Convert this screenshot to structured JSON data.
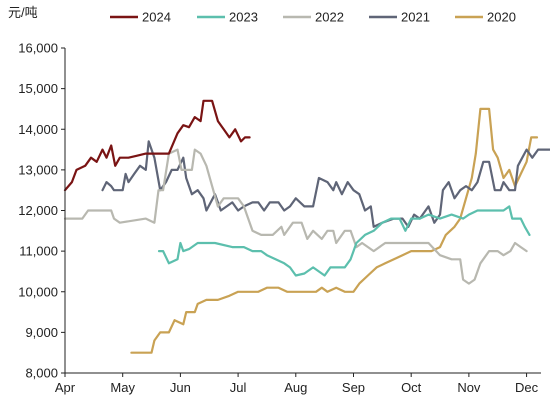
{
  "chart_data": {
    "type": "line",
    "unit_label": "元/吨",
    "ylim": [
      8000,
      16000
    ],
    "y_ticks": [
      8000,
      9000,
      10000,
      11000,
      12000,
      13000,
      14000,
      15000,
      16000
    ],
    "y_tick_labels": [
      "8,000",
      "9,000",
      "10,000",
      "11,000",
      "12,000",
      "13,000",
      "14,000",
      "15,000",
      "16,000"
    ],
    "x_axis": "month",
    "x_ticks": [
      4,
      5,
      6,
      7,
      8,
      9,
      10,
      11,
      12
    ],
    "x_tick_labels": [
      "Apr",
      "May",
      "Jun",
      "Jul",
      "Aug",
      "Sep",
      "Oct",
      "Nov",
      "Dec"
    ],
    "grid": false,
    "legend_position": "top",
    "series": [
      {
        "name": "2024",
        "color": "#7a1414",
        "points": [
          [
            4.0,
            12500
          ],
          [
            4.12,
            12700
          ],
          [
            4.2,
            13000
          ],
          [
            4.35,
            13100
          ],
          [
            4.45,
            13300
          ],
          [
            4.55,
            13200
          ],
          [
            4.65,
            13500
          ],
          [
            4.72,
            13300
          ],
          [
            4.8,
            13600
          ],
          [
            4.87,
            13100
          ],
          [
            4.95,
            13300
          ],
          [
            5.1,
            13300
          ],
          [
            5.25,
            13350
          ],
          [
            5.4,
            13400
          ],
          [
            5.6,
            13400
          ],
          [
            5.8,
            13400
          ],
          [
            5.95,
            13900
          ],
          [
            6.05,
            14100
          ],
          [
            6.15,
            14050
          ],
          [
            6.25,
            14300
          ],
          [
            6.35,
            14200
          ],
          [
            6.4,
            14700
          ],
          [
            6.55,
            14700
          ],
          [
            6.65,
            14200
          ],
          [
            6.75,
            14000
          ],
          [
            6.85,
            13800
          ],
          [
            6.95,
            14000
          ],
          [
            7.05,
            13700
          ],
          [
            7.12,
            13800
          ],
          [
            7.2,
            13800
          ]
        ]
      },
      {
        "name": "2023",
        "color": "#5cbfad",
        "points": [
          [
            5.63,
            11000
          ],
          [
            5.7,
            11000
          ],
          [
            5.8,
            10700
          ],
          [
            5.95,
            10800
          ],
          [
            6.0,
            11200
          ],
          [
            6.05,
            11000
          ],
          [
            6.15,
            11050
          ],
          [
            6.3,
            11200
          ],
          [
            6.6,
            11200
          ],
          [
            6.9,
            11100
          ],
          [
            7.1,
            11100
          ],
          [
            7.25,
            11000
          ],
          [
            7.4,
            11000
          ],
          [
            7.5,
            10900
          ],
          [
            7.65,
            10800
          ],
          [
            7.8,
            10700
          ],
          [
            7.9,
            10600
          ],
          [
            8.0,
            10400
          ],
          [
            8.15,
            10450
          ],
          [
            8.3,
            10600
          ],
          [
            8.5,
            10400
          ],
          [
            8.6,
            10600
          ],
          [
            8.85,
            10600
          ],
          [
            8.95,
            10800
          ],
          [
            9.05,
            11200
          ],
          [
            9.2,
            11400
          ],
          [
            9.35,
            11500
          ],
          [
            9.5,
            11700
          ],
          [
            9.65,
            11800
          ],
          [
            9.8,
            11800
          ],
          [
            9.9,
            11500
          ],
          [
            10.0,
            11800
          ],
          [
            10.15,
            11800
          ],
          [
            10.3,
            11900
          ],
          [
            10.5,
            11800
          ],
          [
            10.7,
            11900
          ],
          [
            10.9,
            11800
          ],
          [
            11.0,
            11900
          ],
          [
            11.15,
            12000
          ],
          [
            11.4,
            12000
          ],
          [
            11.6,
            12000
          ],
          [
            11.7,
            12100
          ],
          [
            11.75,
            11800
          ],
          [
            11.9,
            11800
          ],
          [
            11.97,
            11600
          ],
          [
            12.05,
            11400
          ]
        ]
      },
      {
        "name": "2022",
        "color": "#b8b8b0",
        "points": [
          [
            4.0,
            11800
          ],
          [
            4.3,
            11800
          ],
          [
            4.4,
            12000
          ],
          [
            4.8,
            12000
          ],
          [
            4.85,
            11800
          ],
          [
            4.95,
            11700
          ],
          [
            5.4,
            11800
          ],
          [
            5.55,
            11700
          ],
          [
            5.62,
            12500
          ],
          [
            5.7,
            12500
          ],
          [
            5.8,
            13400
          ],
          [
            5.95,
            13500
          ],
          [
            6.02,
            13000
          ],
          [
            6.2,
            13000
          ],
          [
            6.25,
            13500
          ],
          [
            6.35,
            13400
          ],
          [
            6.45,
            13100
          ],
          [
            6.55,
            12600
          ],
          [
            6.65,
            12100
          ],
          [
            6.75,
            12300
          ],
          [
            7.0,
            12300
          ],
          [
            7.1,
            12100
          ],
          [
            7.25,
            11500
          ],
          [
            7.4,
            11400
          ],
          [
            7.6,
            11400
          ],
          [
            7.75,
            11600
          ],
          [
            7.8,
            11400
          ],
          [
            7.95,
            11700
          ],
          [
            8.1,
            11700
          ],
          [
            8.2,
            11300
          ],
          [
            8.3,
            11500
          ],
          [
            8.45,
            11300
          ],
          [
            8.55,
            11500
          ],
          [
            8.65,
            11500
          ],
          [
            8.7,
            11200
          ],
          [
            8.85,
            11500
          ],
          [
            8.95,
            11500
          ],
          [
            9.05,
            11100
          ],
          [
            9.15,
            11200
          ],
          [
            9.35,
            11000
          ],
          [
            9.55,
            11200
          ],
          [
            9.75,
            11200
          ],
          [
            9.95,
            11200
          ],
          [
            10.1,
            11200
          ],
          [
            10.3,
            11200
          ],
          [
            10.5,
            10900
          ],
          [
            10.7,
            10800
          ],
          [
            10.85,
            10800
          ],
          [
            10.9,
            10300
          ],
          [
            11.0,
            10200
          ],
          [
            11.1,
            10300
          ],
          [
            11.2,
            10700
          ],
          [
            11.35,
            11000
          ],
          [
            11.5,
            11000
          ],
          [
            11.6,
            10900
          ],
          [
            11.72,
            11000
          ],
          [
            11.8,
            11200
          ],
          [
            11.9,
            11100
          ],
          [
            12.0,
            11000
          ]
        ]
      },
      {
        "name": "2021",
        "color": "#5f6577",
        "points": [
          [
            4.65,
            12500
          ],
          [
            4.72,
            12700
          ],
          [
            4.8,
            12600
          ],
          [
            4.85,
            12500
          ],
          [
            5.0,
            12500
          ],
          [
            5.05,
            12900
          ],
          [
            5.1,
            12700
          ],
          [
            5.2,
            12900
          ],
          [
            5.3,
            13100
          ],
          [
            5.4,
            13000
          ],
          [
            5.45,
            13700
          ],
          [
            5.55,
            13300
          ],
          [
            5.65,
            12500
          ],
          [
            5.75,
            12700
          ],
          [
            5.85,
            13000
          ],
          [
            5.95,
            13000
          ],
          [
            6.05,
            13300
          ],
          [
            6.1,
            12800
          ],
          [
            6.2,
            12400
          ],
          [
            6.3,
            12500
          ],
          [
            6.4,
            12300
          ],
          [
            6.45,
            12000
          ],
          [
            6.6,
            12400
          ],
          [
            6.7,
            12000
          ],
          [
            6.9,
            12200
          ],
          [
            7.0,
            12000
          ],
          [
            7.1,
            12100
          ],
          [
            7.25,
            12200
          ],
          [
            7.35,
            12200
          ],
          [
            7.45,
            12000
          ],
          [
            7.55,
            12200
          ],
          [
            7.7,
            12200
          ],
          [
            7.8,
            12000
          ],
          [
            7.9,
            12100
          ],
          [
            8.0,
            12300
          ],
          [
            8.15,
            12100
          ],
          [
            8.3,
            12100
          ],
          [
            8.4,
            12800
          ],
          [
            8.55,
            12700
          ],
          [
            8.65,
            12500
          ],
          [
            8.7,
            12700
          ],
          [
            8.8,
            12400
          ],
          [
            8.9,
            12700
          ],
          [
            9.0,
            12500
          ],
          [
            9.1,
            12400
          ],
          [
            9.2,
            12000
          ],
          [
            9.3,
            12100
          ],
          [
            9.35,
            11600
          ],
          [
            9.5,
            11700
          ],
          [
            9.7,
            11800
          ],
          [
            9.85,
            11800
          ],
          [
            9.95,
            11600
          ],
          [
            10.05,
            11900
          ],
          [
            10.15,
            11800
          ],
          [
            10.3,
            12100
          ],
          [
            10.4,
            11700
          ],
          [
            10.5,
            11900
          ],
          [
            10.55,
            12500
          ],
          [
            10.65,
            12700
          ],
          [
            10.75,
            12300
          ],
          [
            10.85,
            12500
          ],
          [
            10.95,
            12600
          ],
          [
            11.05,
            12500
          ],
          [
            11.15,
            12700
          ],
          [
            11.25,
            13200
          ],
          [
            11.35,
            13200
          ],
          [
            11.45,
            12500
          ],
          [
            11.55,
            12500
          ],
          [
            11.6,
            12700
          ],
          [
            11.7,
            12500
          ],
          [
            11.8,
            12500
          ],
          [
            11.85,
            13100
          ],
          [
            12.0,
            13500
          ],
          [
            12.1,
            13300
          ],
          [
            12.2,
            13500
          ],
          [
            12.5,
            13500
          ]
        ]
      },
      {
        "name": "2020",
        "color": "#c9a254",
        "points": [
          [
            5.15,
            8500
          ],
          [
            5.5,
            8500
          ],
          [
            5.55,
            8800
          ],
          [
            5.65,
            9000
          ],
          [
            5.8,
            9000
          ],
          [
            5.9,
            9300
          ],
          [
            6.05,
            9200
          ],
          [
            6.1,
            9500
          ],
          [
            6.25,
            9500
          ],
          [
            6.3,
            9700
          ],
          [
            6.45,
            9800
          ],
          [
            6.65,
            9800
          ],
          [
            6.85,
            9900
          ],
          [
            7.0,
            10000
          ],
          [
            7.2,
            10000
          ],
          [
            7.35,
            10000
          ],
          [
            7.5,
            10100
          ],
          [
            7.7,
            10100
          ],
          [
            7.85,
            10000
          ],
          [
            8.0,
            10000
          ],
          [
            8.2,
            10000
          ],
          [
            8.35,
            10000
          ],
          [
            8.45,
            10100
          ],
          [
            8.55,
            10000
          ],
          [
            8.7,
            10100
          ],
          [
            8.85,
            10000
          ],
          [
            9.0,
            10000
          ],
          [
            9.1,
            10200
          ],
          [
            9.25,
            10400
          ],
          [
            9.4,
            10600
          ],
          [
            9.55,
            10700
          ],
          [
            9.7,
            10800
          ],
          [
            9.85,
            10900
          ],
          [
            10.0,
            11000
          ],
          [
            10.2,
            11000
          ],
          [
            10.35,
            11000
          ],
          [
            10.5,
            11100
          ],
          [
            10.6,
            11400
          ],
          [
            10.75,
            11600
          ],
          [
            10.85,
            11800
          ],
          [
            10.95,
            12300
          ],
          [
            11.05,
            12800
          ],
          [
            11.12,
            13400
          ],
          [
            11.2,
            14500
          ],
          [
            11.35,
            14500
          ],
          [
            11.42,
            13500
          ],
          [
            11.5,
            13300
          ],
          [
            11.6,
            12800
          ],
          [
            11.7,
            13000
          ],
          [
            11.8,
            12600
          ],
          [
            11.9,
            12900
          ],
          [
            12.0,
            13200
          ],
          [
            12.08,
            13800
          ],
          [
            12.18,
            13800
          ]
        ]
      }
    ]
  }
}
